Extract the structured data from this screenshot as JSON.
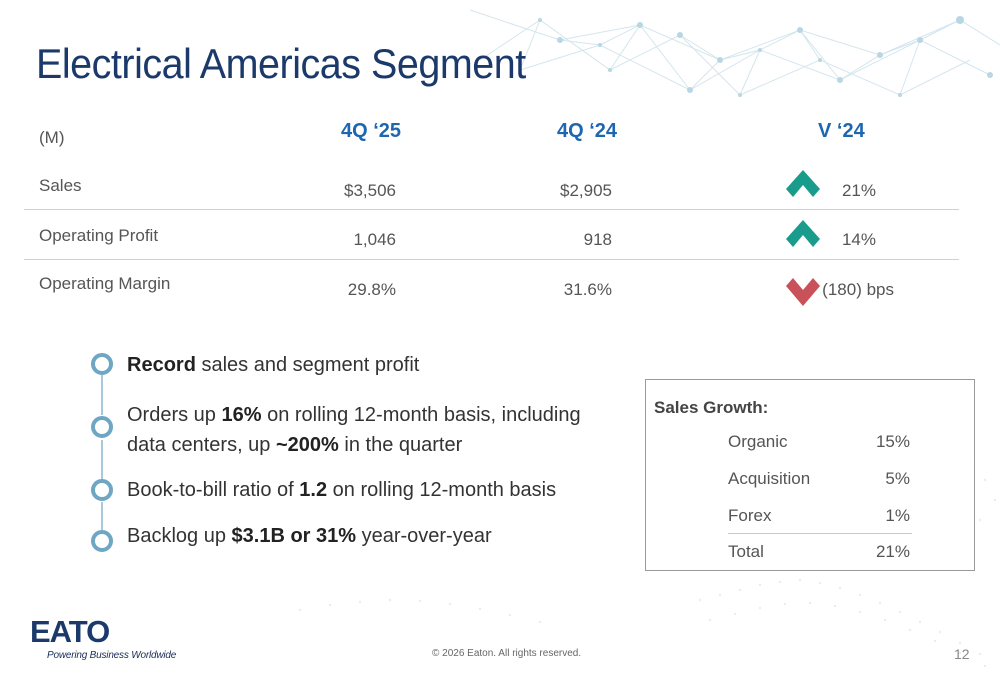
{
  "slide": {
    "title": "Electrical Americas Segment",
    "page_number": "12",
    "copyright": "© 2026 Eaton. All rights reserved."
  },
  "brand": {
    "logo_text": "EATON",
    "tagline": "Powering Business Worldwide",
    "color": "#1b3a6b"
  },
  "colors": {
    "up_arrow": "#1a9c8c",
    "down_arrow": "#c9525a",
    "header_blue": "#1f66b0",
    "bullet_ring": "#6ea6c4"
  },
  "table": {
    "unit_label": "(M)",
    "headers": [
      "4Q ‘25",
      "4Q ‘24",
      "V ‘24"
    ],
    "rows": [
      {
        "label": "Sales",
        "q25": "$3,506",
        "q24": "$2,905",
        "direction": "up",
        "change": "21%"
      },
      {
        "label": "Operating Profit",
        "q25": "1,046",
        "q24": "918",
        "direction": "up",
        "change": "14%"
      },
      {
        "label": "Operating Margin",
        "q25": "29.8%",
        "q24": "31.6%",
        "direction": "down",
        "change": "(180) bps"
      }
    ]
  },
  "bullets": [
    {
      "b1": "Record",
      "t1": " sales and segment profit"
    },
    {
      "t0": "Orders up ",
      "b1": "16%",
      "t1": " on rolling 12-month basis, including data centers, up ",
      "b2": "~200%",
      "t2": " in the quarter"
    },
    {
      "t0": "Book-to-bill ratio of ",
      "b1": "1.2",
      "t1": " on rolling 12-month basis"
    },
    {
      "t0": "Backlog up ",
      "b1": "$3.1B or 31%",
      "t1": " year-over-year"
    }
  ],
  "sales_growth": {
    "title": "Sales Growth:",
    "items": [
      {
        "label": "Organic",
        "value": "15%"
      },
      {
        "label": "Acquisition",
        "value": "5%"
      },
      {
        "label": "Forex",
        "value": "1%"
      },
      {
        "label": "Total",
        "value": "21%"
      }
    ]
  }
}
